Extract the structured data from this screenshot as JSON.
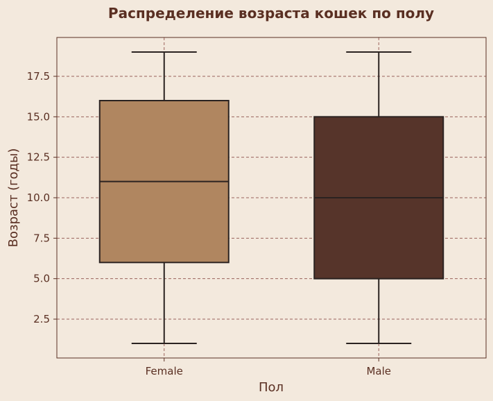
{
  "chart_data": {
    "type": "box",
    "title": "Распределение возраста кошек по полу",
    "xlabel": "Пол",
    "ylabel": "Возраст (годы)",
    "ylim": [
      0.1,
      19.9
    ],
    "yticks": [
      2.5,
      5.0,
      7.5,
      10.0,
      12.5,
      15.0,
      17.5
    ],
    "ytick_labels": [
      "2.5",
      "5.0",
      "7.5",
      "10.0",
      "12.5",
      "15.0",
      "17.5"
    ],
    "grid": true,
    "categories": [
      "Female",
      "Male"
    ],
    "series": [
      {
        "category": "Female",
        "min": 1,
        "q1": 6,
        "median": 11,
        "q3": 16,
        "max": 19,
        "color": "#b08660"
      },
      {
        "category": "Male",
        "min": 1,
        "q1": 5,
        "median": 10,
        "q3": 15,
        "max": 19,
        "color": "#56342a"
      }
    ],
    "colors": {
      "background": "#f3e9dd",
      "text": "#5a2f22",
      "grid": "#8b4a45",
      "lines": "#2a2220"
    }
  }
}
